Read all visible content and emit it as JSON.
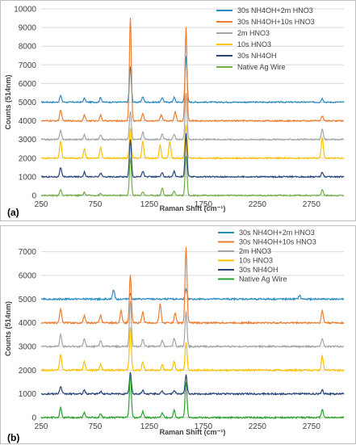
{
  "chart_data": [
    {
      "type": "line",
      "panel_label": "(a)",
      "xlabel": "Raman Shift (cm⁻¹)",
      "ylabel": "Counts (514nm)",
      "xlim": [
        250,
        3050
      ],
      "ylim": [
        0,
        10000
      ],
      "xticks": [
        "250",
        "750",
        "1250",
        "1750",
        "2250",
        "2750"
      ],
      "yticks": [
        "0",
        "1000",
        "2000",
        "3000",
        "4000",
        "5000",
        "6000",
        "7000",
        "8000",
        "9000",
        "10000"
      ],
      "grid": "horizontal",
      "legend_position": "top-right",
      "series": [
        {
          "name": "30s NH4OH+2m HNO3",
          "color": "#2a8cc4",
          "baseline": 5000,
          "peaks": [
            [
              430,
              350
            ],
            [
              650,
              200
            ],
            [
              800,
              250
            ],
            [
              1075,
              1900
            ],
            [
              1190,
              300
            ],
            [
              1370,
              250
            ],
            [
              1480,
              250
            ],
            [
              1590,
              2500
            ],
            [
              2850,
              200
            ]
          ]
        },
        {
          "name": "30s NH4OH+10s HNO3",
          "color": "#ed7d31",
          "baseline": 4000,
          "peaks": [
            [
              430,
              600
            ],
            [
              650,
              300
            ],
            [
              800,
              300
            ],
            [
              1075,
              5500
            ],
            [
              1190,
              400
            ],
            [
              1360,
              300
            ],
            [
              1490,
              500
            ],
            [
              1590,
              5000
            ],
            [
              2850,
              250
            ]
          ]
        },
        {
          "name": "2m HNO3",
          "color": "#a5a5a5",
          "baseline": 3000,
          "peaks": [
            [
              430,
              500
            ],
            [
              650,
              250
            ],
            [
              800,
              250
            ],
            [
              1075,
              1500
            ],
            [
              1190,
              400
            ],
            [
              1370,
              300
            ],
            [
              1480,
              250
            ],
            [
              1590,
              2500
            ],
            [
              2850,
              550
            ]
          ]
        },
        {
          "name": "10s HNO3",
          "color": "#ffc000",
          "baseline": 2000,
          "peaks": [
            [
              430,
              900
            ],
            [
              650,
              500
            ],
            [
              800,
              600
            ],
            [
              1075,
              1600
            ],
            [
              1190,
              900
            ],
            [
              1350,
              700
            ],
            [
              1440,
              900
            ],
            [
              1590,
              1800
            ],
            [
              2850,
              1100
            ]
          ]
        },
        {
          "name": "30s NH4OH",
          "color": "#264478",
          "baseline": 1000,
          "peaks": [
            [
              430,
              500
            ],
            [
              650,
              250
            ],
            [
              800,
              200
            ],
            [
              1075,
              2000
            ],
            [
              1190,
              300
            ],
            [
              1370,
              200
            ],
            [
              1480,
              300
            ],
            [
              1590,
              2300
            ],
            [
              2850,
              250
            ]
          ]
        },
        {
          "name": "Native Ag Wire",
          "color": "#70ad47",
          "baseline": 0,
          "peaks": [
            [
              430,
              300
            ],
            [
              650,
              150
            ],
            [
              800,
              100
            ],
            [
              1075,
              2000
            ],
            [
              1190,
              200
            ],
            [
              1370,
              400
            ],
            [
              1480,
              250
            ],
            [
              1590,
              2100
            ],
            [
              2850,
              300
            ]
          ]
        }
      ]
    },
    {
      "type": "line",
      "panel_label": "(b)",
      "xlabel": "Raman Shift (cm⁻¹)",
      "ylabel": "Counts (514nm)",
      "xlim": [
        250,
        3050
      ],
      "ylim": [
        0,
        7500
      ],
      "xticks": [
        "250",
        "750",
        "1250",
        "1750",
        "2250",
        "2750"
      ],
      "yticks": [
        "0",
        "1000",
        "2000",
        "3000",
        "4000",
        "5000",
        "6000",
        "7000"
      ],
      "grid": "horizontal",
      "legend_position": "top-right",
      "series": [
        {
          "name": "30s NH4OH+2m HNO3",
          "color": "#2a8cc4",
          "baseline": 5000,
          "peaks": [
            [
              920,
              400
            ],
            [
              1075,
              200
            ],
            [
              1590,
              400
            ],
            [
              2640,
              150
            ]
          ]
        },
        {
          "name": "30s NH4OH+10s HNO3",
          "color": "#ed7d31",
          "baseline": 4000,
          "peaks": [
            [
              430,
              600
            ],
            [
              650,
              300
            ],
            [
              800,
              300
            ],
            [
              990,
              500
            ],
            [
              1075,
              2000
            ],
            [
              1190,
              450
            ],
            [
              1350,
              800
            ],
            [
              1490,
              400
            ],
            [
              1590,
              3200
            ],
            [
              2850,
              500
            ]
          ]
        },
        {
          "name": "2m HNO3",
          "color": "#a5a5a5",
          "baseline": 3000,
          "peaks": [
            [
              430,
              500
            ],
            [
              650,
              300
            ],
            [
              800,
              250
            ],
            [
              1075,
              1900
            ],
            [
              1190,
              300
            ],
            [
              1370,
              250
            ],
            [
              1480,
              350
            ],
            [
              1590,
              1500
            ],
            [
              2850,
              350
            ]
          ]
        },
        {
          "name": "10s HNO3",
          "color": "#ffc000",
          "baseline": 2000,
          "peaks": [
            [
              430,
              700
            ],
            [
              650,
              350
            ],
            [
              800,
              250
            ],
            [
              1075,
              1800
            ],
            [
              1190,
              350
            ],
            [
              1370,
              250
            ],
            [
              1480,
              350
            ],
            [
              1590,
              1200
            ],
            [
              2850,
              600
            ]
          ]
        },
        {
          "name": "30s NH4OH",
          "color": "#264478",
          "baseline": 1000,
          "peaks": [
            [
              430,
              300
            ],
            [
              650,
              150
            ],
            [
              800,
              100
            ],
            [
              1075,
              900
            ],
            [
              1190,
              150
            ],
            [
              1370,
              100
            ],
            [
              1480,
              150
            ],
            [
              1590,
              800
            ],
            [
              2850,
              150
            ]
          ]
        },
        {
          "name": "Native Ag Wire",
          "color": "#2ca02c",
          "baseline": 0,
          "peaks": [
            [
              430,
              400
            ],
            [
              650,
              200
            ],
            [
              800,
              150
            ],
            [
              1075,
              1800
            ],
            [
              1190,
              250
            ],
            [
              1370,
              200
            ],
            [
              1480,
              300
            ],
            [
              1590,
              1500
            ],
            [
              2850,
              350
            ]
          ]
        }
      ]
    }
  ]
}
